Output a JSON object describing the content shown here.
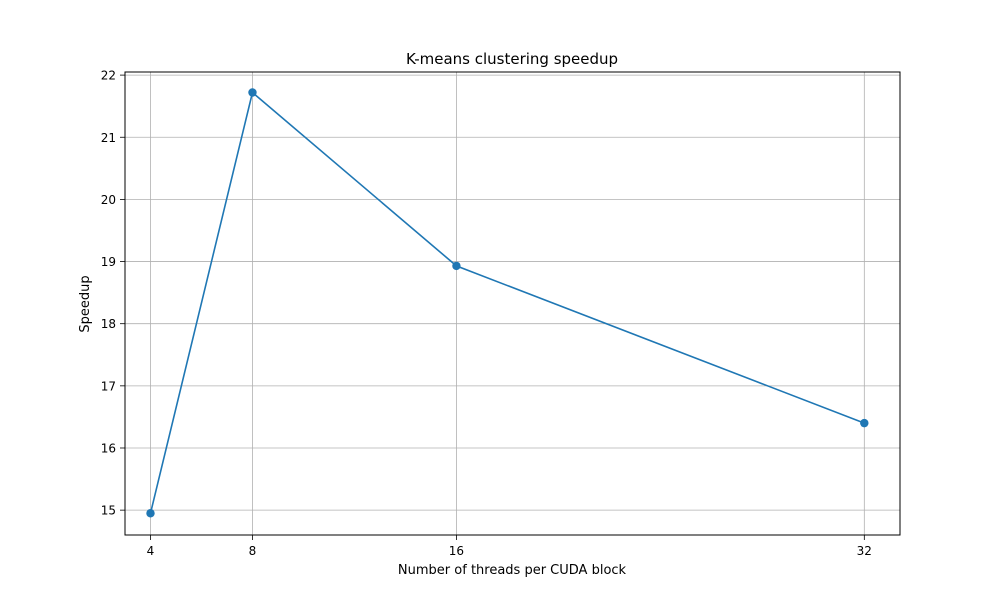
{
  "chart_data": {
    "type": "line",
    "title": "K-means clustering speedup",
    "xlabel": "Number of threads per CUDA block",
    "ylabel": "Speedup",
    "x": [
      4,
      8,
      16,
      32
    ],
    "series": [
      {
        "values": [
          14.95,
          21.72,
          18.93,
          16.4
        ]
      }
    ],
    "xticks": [
      "4",
      "8",
      "16",
      "32"
    ],
    "yticks": [
      "15",
      "16",
      "17",
      "18",
      "19",
      "20",
      "21",
      "22"
    ],
    "xlim": [
      3.0,
      33.4
    ],
    "ylim": [
      14.6,
      22.05
    ],
    "grid": true,
    "marker": "circle",
    "color": "#1f77b4"
  }
}
